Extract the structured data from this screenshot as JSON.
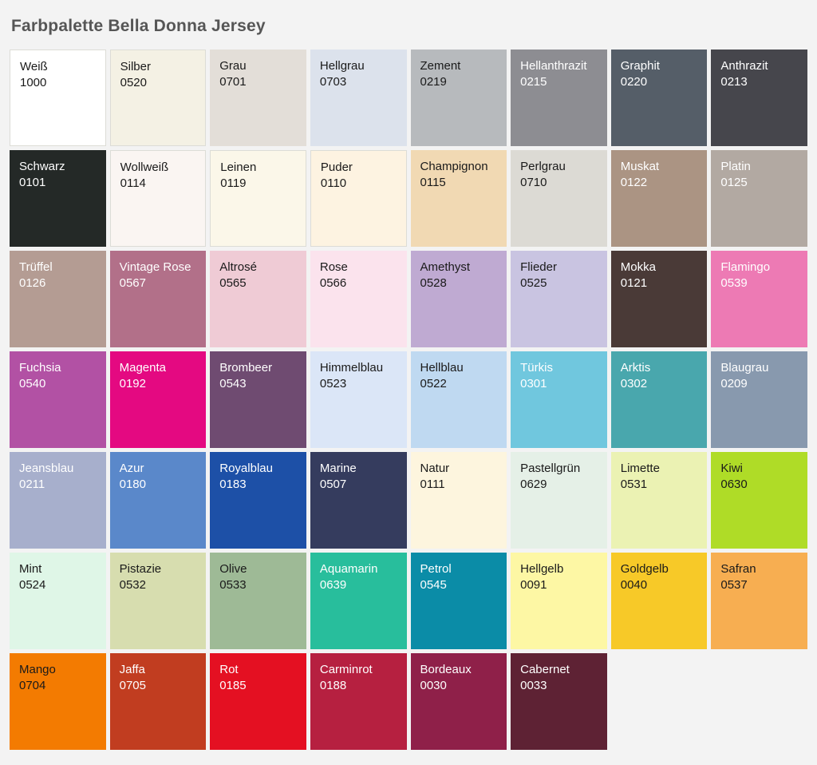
{
  "page": {
    "title": "Farbpalette Bella Donna Jersey",
    "background": "#f3f3f3",
    "title_color": "#565656"
  },
  "palette": {
    "columns": 8,
    "dark_text_color": "#1a1a1a",
    "light_text_color": "#ffffff",
    "swatches": [
      {
        "name": "Weiß",
        "code": "1000",
        "color": "#ffffff",
        "text": "dark",
        "border": true
      },
      {
        "name": "Silber",
        "code": "0520",
        "color": "#f4f1e4",
        "text": "dark",
        "border": true
      },
      {
        "name": "Grau",
        "code": "0701",
        "color": "#e3ded8",
        "text": "dark",
        "border": false
      },
      {
        "name": "Hellgrau",
        "code": "0703",
        "color": "#dce2ec",
        "text": "dark",
        "border": false
      },
      {
        "name": "Zement",
        "code": "0219",
        "color": "#b7babd",
        "text": "dark",
        "border": false
      },
      {
        "name": "Hellanthrazit",
        "code": "0215",
        "color": "#8d8d92",
        "text": "light",
        "border": false
      },
      {
        "name": "Graphit",
        "code": "0220",
        "color": "#555e68",
        "text": "light",
        "border": false
      },
      {
        "name": "Anthrazit",
        "code": "0213",
        "color": "#46464c",
        "text": "light",
        "border": false
      },
      {
        "name": "Schwarz",
        "code": "0101",
        "color": "#242927",
        "text": "light",
        "border": false
      },
      {
        "name": "Wollweiß",
        "code": "0114",
        "color": "#faf5f2",
        "text": "dark",
        "border": true
      },
      {
        "name": "Leinen",
        "code": "0119",
        "color": "#fbf7e9",
        "text": "dark",
        "border": true
      },
      {
        "name": "Puder",
        "code": "0110",
        "color": "#fdf3e1",
        "text": "dark",
        "border": true
      },
      {
        "name": "Champignon",
        "code": "0115",
        "color": "#f1d9b3",
        "text": "dark",
        "border": false
      },
      {
        "name": "Perlgrau",
        "code": "0710",
        "color": "#dcdad4",
        "text": "dark",
        "border": false
      },
      {
        "name": "Muskat",
        "code": "0122",
        "color": "#ab9483",
        "text": "light",
        "border": false
      },
      {
        "name": "Platin",
        "code": "0125",
        "color": "#b2a9a2",
        "text": "light",
        "border": false
      },
      {
        "name": "Trüffel",
        "code": "0126",
        "color": "#b49c93",
        "text": "light",
        "border": false
      },
      {
        "name": "Vintage Rose",
        "code": "0567",
        "color": "#b27089",
        "text": "light",
        "border": false
      },
      {
        "name": "Altrosé",
        "code": "0565",
        "color": "#efcbd5",
        "text": "dark",
        "border": false
      },
      {
        "name": "Rose",
        "code": "0566",
        "color": "#fbe3ed",
        "text": "dark",
        "border": false
      },
      {
        "name": "Amethyst",
        "code": "0528",
        "color": "#bfaad2",
        "text": "dark",
        "border": false
      },
      {
        "name": "Flieder",
        "code": "0525",
        "color": "#c9c4e1",
        "text": "dark",
        "border": false
      },
      {
        "name": "Mokka",
        "code": "0121",
        "color": "#4a3a37",
        "text": "light",
        "border": false
      },
      {
        "name": "Flamingo",
        "code": "0539",
        "color": "#ed7ab4",
        "text": "light",
        "border": false
      },
      {
        "name": "Fuchsia",
        "code": "0540",
        "color": "#b251a4",
        "text": "light",
        "border": false
      },
      {
        "name": "Magenta",
        "code": "0192",
        "color": "#e40981",
        "text": "light",
        "border": false
      },
      {
        "name": "Brombeer",
        "code": "0543",
        "color": "#6f4b71",
        "text": "light",
        "border": false
      },
      {
        "name": "Himmelblau",
        "code": "0523",
        "color": "#dbe6f7",
        "text": "dark",
        "border": false
      },
      {
        "name": "Hellblau",
        "code": "0522",
        "color": "#bfd9f1",
        "text": "dark",
        "border": false
      },
      {
        "name": "Türkis",
        "code": "0301",
        "color": "#70c7de",
        "text": "light",
        "border": false
      },
      {
        "name": "Arktis",
        "code": "0302",
        "color": "#49a7ad",
        "text": "light",
        "border": false
      },
      {
        "name": "Blaugrau",
        "code": "0209",
        "color": "#8899ae",
        "text": "light",
        "border": false
      },
      {
        "name": "Jeansblau",
        "code": "0211",
        "color": "#a7afcc",
        "text": "light",
        "border": false
      },
      {
        "name": "Azur",
        "code": "0180",
        "color": "#5a88ca",
        "text": "light",
        "border": false
      },
      {
        "name": "Royalblau",
        "code": "0183",
        "color": "#1d50a7",
        "text": "light",
        "border": false
      },
      {
        "name": "Marine",
        "code": "0507",
        "color": "#353c5e",
        "text": "light",
        "border": false
      },
      {
        "name": "Natur",
        "code": "0111",
        "color": "#fdf5de",
        "text": "dark",
        "border": false
      },
      {
        "name": "Pastellgrün",
        "code": "0629",
        "color": "#e5f0e7",
        "text": "dark",
        "border": false
      },
      {
        "name": "Limette",
        "code": "0531",
        "color": "#ebf2b3",
        "text": "dark",
        "border": false
      },
      {
        "name": "Kiwi",
        "code": "0630",
        "color": "#afdc27",
        "text": "dark",
        "border": false
      },
      {
        "name": "Mint",
        "code": "0524",
        "color": "#dff6e7",
        "text": "dark",
        "border": false
      },
      {
        "name": "Pistazie",
        "code": "0532",
        "color": "#d7ddaf",
        "text": "dark",
        "border": false
      },
      {
        "name": "Olive",
        "code": "0533",
        "color": "#9eba96",
        "text": "dark",
        "border": false
      },
      {
        "name": "Aquamarin",
        "code": "0639",
        "color": "#28be9c",
        "text": "light",
        "border": false
      },
      {
        "name": "Petrol",
        "code": "0545",
        "color": "#0b8ca7",
        "text": "light",
        "border": false
      },
      {
        "name": "Hellgelb",
        "code": "0091",
        "color": "#fdf7a4",
        "text": "dark",
        "border": false
      },
      {
        "name": "Goldgelb",
        "code": "0040",
        "color": "#f7c928",
        "text": "dark",
        "border": false
      },
      {
        "name": "Safran",
        "code": "0537",
        "color": "#f7ae51",
        "text": "dark",
        "border": false
      },
      {
        "name": "Mango",
        "code": "0704",
        "color": "#f37b01",
        "text": "dark",
        "border": false
      },
      {
        "name": "Jaffa",
        "code": "0705",
        "color": "#c13d20",
        "text": "light",
        "border": false
      },
      {
        "name": "Rot",
        "code": "0185",
        "color": "#e41022",
        "text": "light",
        "border": false
      },
      {
        "name": "Carminrot",
        "code": "0188",
        "color": "#b62040",
        "text": "light",
        "border": false
      },
      {
        "name": "Bordeaux",
        "code": "0030",
        "color": "#8f2049",
        "text": "light",
        "border": false
      },
      {
        "name": "Cabernet",
        "code": "0033",
        "color": "#5e2234",
        "text": "light",
        "border": false
      }
    ]
  }
}
